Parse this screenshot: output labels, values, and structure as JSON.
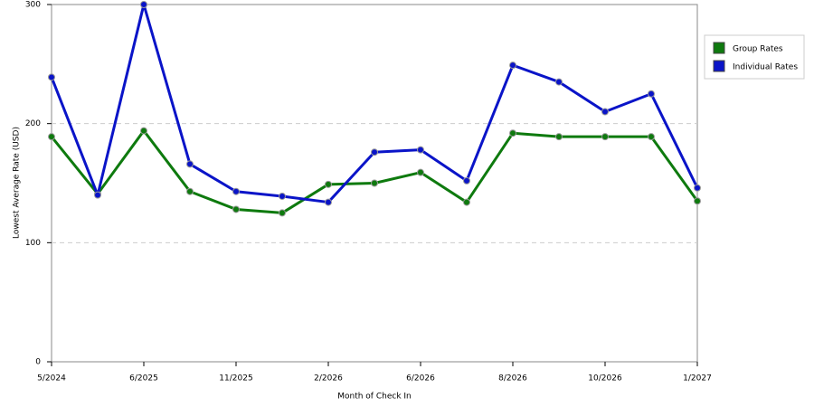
{
  "chart_data": {
    "type": "line",
    "x_label": "Month of Check In",
    "y_label": "Lowest Average Rate (USD)",
    "categories": [
      "5/2024",
      null,
      "6/2025",
      null,
      "11/2025",
      null,
      "2/2026",
      null,
      "6/2026",
      null,
      "8/2026",
      null,
      "10/2026",
      null,
      "1/2027"
    ],
    "series": [
      {
        "name": "Group Rates",
        "color": "#0e7a0e",
        "values": [
          189,
          141,
          194,
          143,
          128,
          125,
          149,
          150,
          159,
          134,
          192,
          189,
          189,
          189,
          135
        ]
      },
      {
        "name": "Individual Rates",
        "color": "#0a14c8",
        "values": [
          239,
          140,
          300,
          166,
          143,
          139,
          134,
          176,
          178,
          152,
          249,
          235,
          210,
          225,
          146
        ]
      }
    ],
    "ylim": [
      0,
      300
    ],
    "yticks": [
      0,
      100,
      200,
      300
    ],
    "grid": true,
    "legend": "right"
  }
}
